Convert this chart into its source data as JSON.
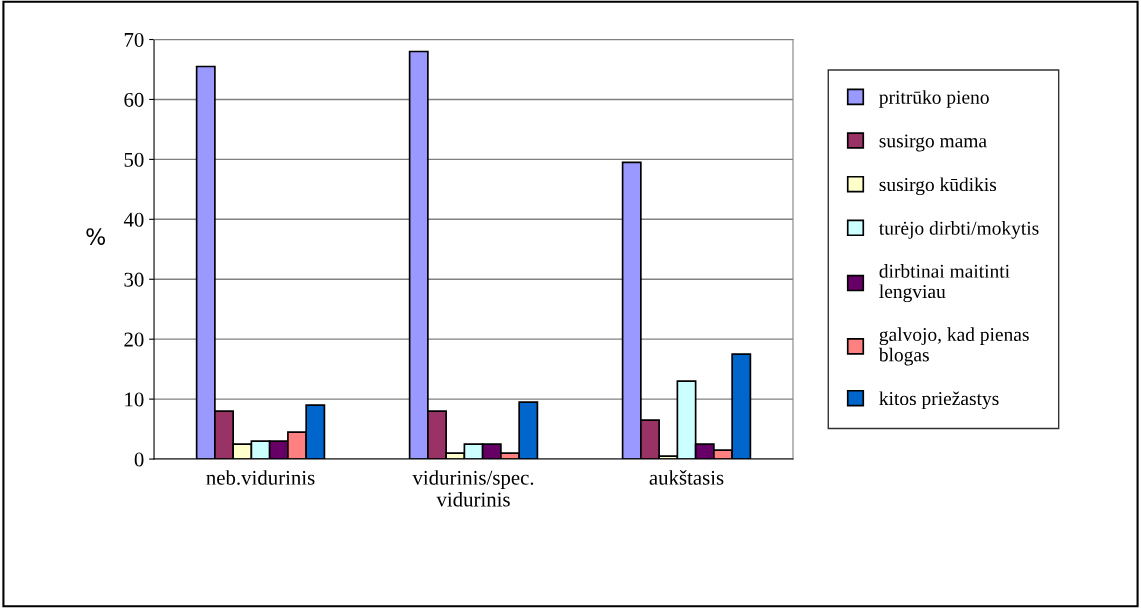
{
  "chart_data": {
    "type": "bar",
    "ylabel": "%",
    "categories": [
      "neb.vidurinis",
      "vidurinis/spec.\nvidurinis",
      "aukštasis"
    ],
    "series": [
      {
        "name": "pritrūko pieno",
        "color": "#9999ff",
        "values": [
          65.5,
          68,
          49.5
        ]
      },
      {
        "name": "susirgo mama",
        "color": "#993366",
        "values": [
          8,
          8,
          6.5
        ]
      },
      {
        "name": "susirgo kūdikis",
        "color": "#ffffcc",
        "values": [
          2.5,
          1,
          0.5
        ]
      },
      {
        "name": "turėjo dirbti/mokytis",
        "color": "#ccffff",
        "values": [
          3,
          2.5,
          13
        ]
      },
      {
        "name": "dirbtinai maitinti\nlengviau",
        "color": "#660066",
        "values": [
          3,
          2.5,
          2.5
        ]
      },
      {
        "name": "galvojo, kad pienas\nblogas",
        "color": "#ff8080",
        "values": [
          4.5,
          1,
          1.5
        ]
      },
      {
        "name": "kitos priežastys",
        "color": "#0066cc",
        "values": [
          9,
          9.5,
          17.5
        ]
      }
    ],
    "ylim": [
      0,
      70
    ],
    "yticks": [
      0,
      10,
      20,
      30,
      40,
      50,
      60,
      70
    ],
    "grid": "y",
    "legend": "right"
  }
}
